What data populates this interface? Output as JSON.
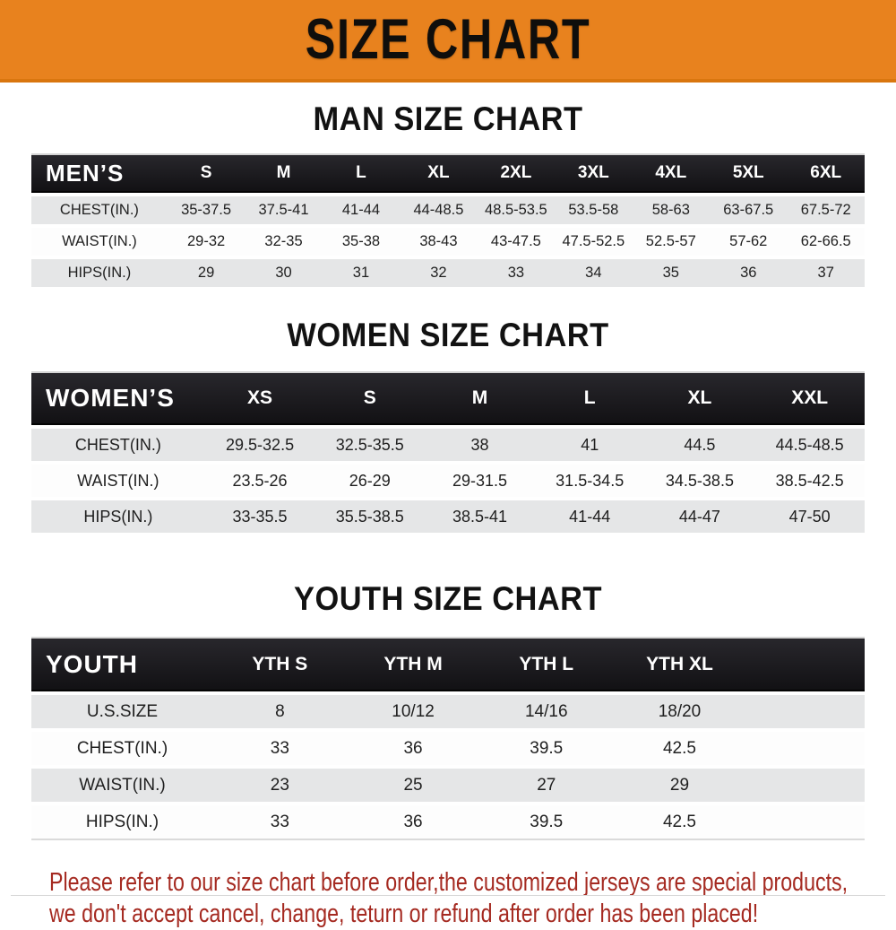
{
  "banner": {
    "title": "SIZE CHART"
  },
  "sections": {
    "men": {
      "heading": "MAN SIZE CHART",
      "table": {
        "label": "MEN’S",
        "sizes": [
          "S",
          "M",
          "L",
          "XL",
          "2XL",
          "3XL",
          "4XL",
          "5XL",
          "6XL"
        ],
        "rows": [
          {
            "label": "CHEST(IN.)",
            "values": [
              "35-37.5",
              "37.5-41",
              "41-44",
              "44-48.5",
              "48.5-53.5",
              "53.5-58",
              "58-63",
              "63-67.5",
              "67.5-72"
            ]
          },
          {
            "label": "WAIST(IN.)",
            "values": [
              "29-32",
              "32-35",
              "35-38",
              "38-43",
              "43-47.5",
              "47.5-52.5",
              "52.5-57",
              "57-62",
              "62-66.5"
            ]
          },
          {
            "label": "HIPS(IN.)",
            "values": [
              "29",
              "30",
              "31",
              "32",
              "33",
              "34",
              "35",
              "36",
              "37"
            ]
          }
        ]
      }
    },
    "women": {
      "heading": "WOMEN SIZE CHART",
      "table": {
        "label": "WOMEN’S",
        "sizes": [
          "XS",
          "S",
          "M",
          "L",
          "XL",
          "XXL"
        ],
        "rows": [
          {
            "label": "CHEST(IN.)",
            "values": [
              "29.5-32.5",
              "32.5-35.5",
              "38",
              "41",
              "44.5",
              "44.5-48.5"
            ]
          },
          {
            "label": "WAIST(IN.)",
            "values": [
              "23.5-26",
              "26-29",
              "29-31.5",
              "31.5-34.5",
              "34.5-38.5",
              "38.5-42.5"
            ]
          },
          {
            "label": "HIPS(IN.)",
            "values": [
              "33-35.5",
              "35.5-38.5",
              "38.5-41",
              "41-44",
              "44-47",
              "47-50"
            ]
          }
        ]
      }
    },
    "youth": {
      "heading": "YOUTH SIZE CHART",
      "table": {
        "label": "YOUTH",
        "sizes": [
          "YTH S",
          "YTH M",
          "YTH L",
          "YTH XL"
        ],
        "rows": [
          {
            "label": "U.S.SIZE",
            "values": [
              "8",
              "10/12",
              "14/16",
              "18/20"
            ]
          },
          {
            "label": "CHEST(IN.)",
            "values": [
              "33",
              "36",
              "39.5",
              "42.5"
            ]
          },
          {
            "label": "WAIST(IN.)",
            "values": [
              "23",
              "25",
              "27",
              "29"
            ]
          },
          {
            "label": "HIPS(IN.)",
            "values": [
              "33",
              "36",
              "39.5",
              "42.5"
            ]
          }
        ]
      }
    }
  },
  "disclaimer": {
    "line1": "Please refer to our size chart before order,the customized jerseys are special products,",
    "line2": "we don't accept cancel, change, teturn or refund after order has been placed!",
    "color": "#A52A21"
  },
  "colors": {
    "banner_bg": "#E8821E",
    "banner_edge": "#D9760F",
    "table_header_bg": "#18181A",
    "row_alt_bg": "#E5E6E7",
    "text": "#1F1F1F"
  }
}
